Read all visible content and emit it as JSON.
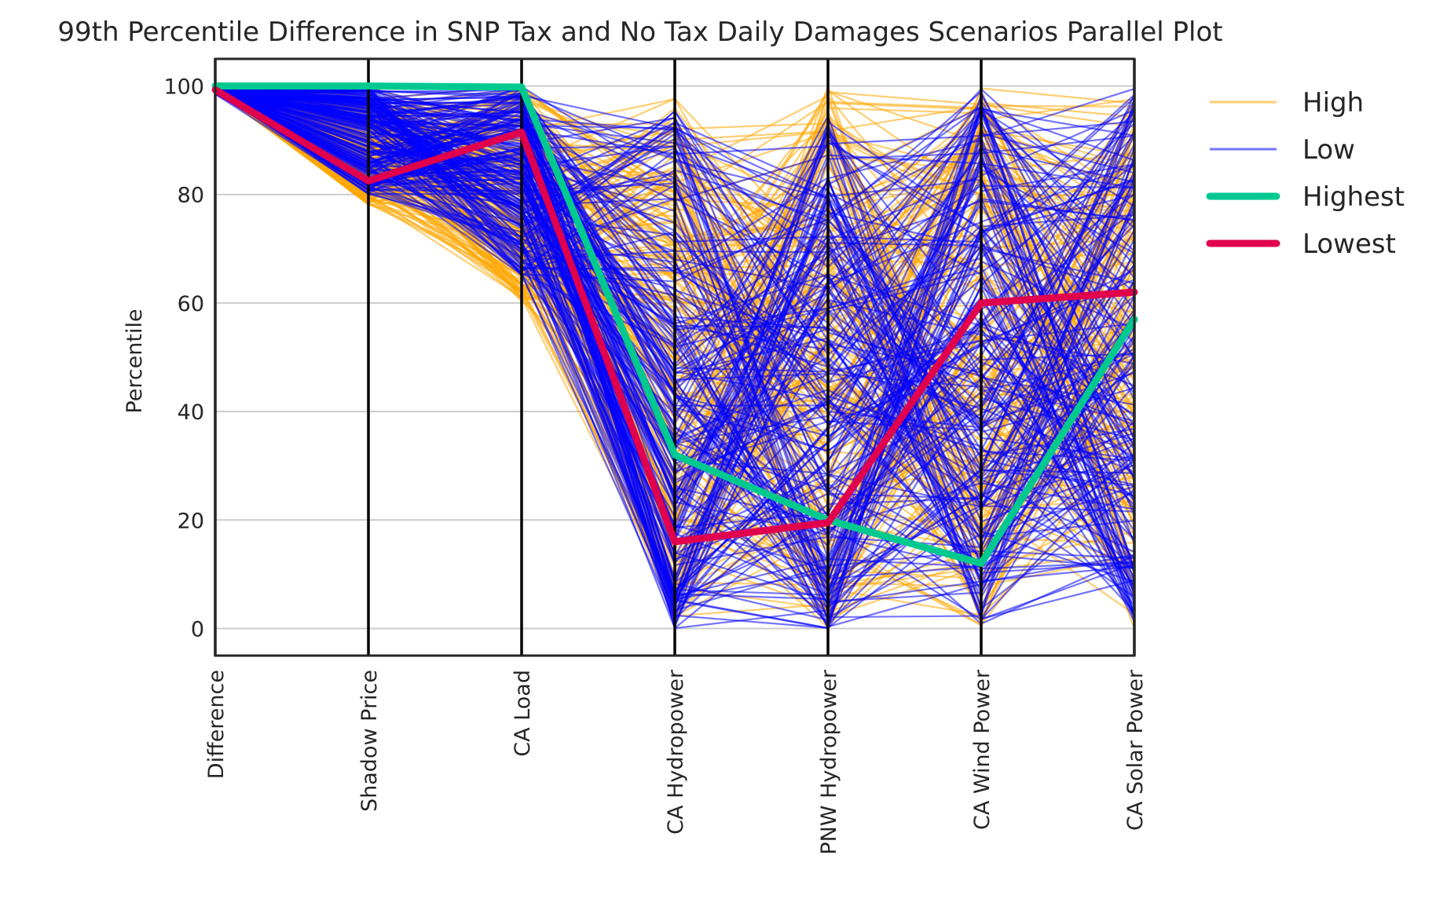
{
  "chart_data": {
    "type": "parallel",
    "title": "99th Percentile Difference in SNP Tax and No Tax Daily Damages Scenarios Parallel Plot",
    "ylabel": "Percentile",
    "ylim": [
      -5,
      105
    ],
    "yticks": [
      "0",
      "20",
      "40",
      "60",
      "80",
      "100"
    ],
    "grid": true,
    "legend_position": "right-outside-top",
    "axes": [
      "Difference",
      "Shadow Price",
      "CA Load",
      "CA Hydropower",
      "PNW Hydropower",
      "CA Wind Power",
      "CA Solar Power"
    ],
    "series": [
      {
        "name": "High",
        "color": "#ffa500",
        "opacity": 0.55,
        "width": "thin",
        "count": 200
      },
      {
        "name": "Low",
        "color": "#0000ff",
        "opacity": 0.55,
        "width": "thin",
        "count": 200
      },
      {
        "name": "Highest",
        "color": "#00c990",
        "width": "thick",
        "values": [
          100,
          100,
          99.8,
          32,
          20,
          12,
          57
        ]
      },
      {
        "name": "Lowest",
        "color": "#e0004d",
        "width": "thick",
        "values": [
          99.3,
          82.5,
          91.5,
          16,
          19.5,
          60,
          62
        ]
      }
    ]
  }
}
